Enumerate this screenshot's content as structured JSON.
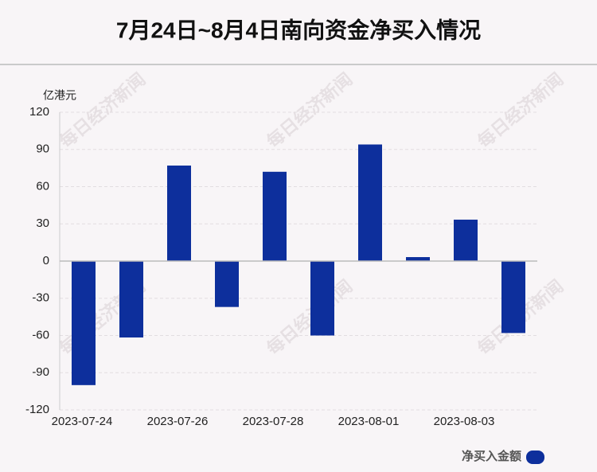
{
  "chart_data": {
    "type": "bar",
    "title": "7月24日~8月4日南向资金净买入情况",
    "y_label": "亿港元",
    "watermark": "每日经济新闻",
    "categories": [
      "2023-07-24",
      null,
      "2023-07-26",
      null,
      "2023-07-28",
      null,
      "2023-08-01",
      null,
      "2023-08-03",
      null
    ],
    "series": [
      {
        "name": "净买入金额",
        "color": "#0d2f9c",
        "values": [
          -100,
          -61.6,
          77,
          -37,
          72,
          -60,
          94,
          3.2,
          33.4,
          -58
        ]
      }
    ],
    "ylim": [
      -120,
      120
    ],
    "yticks": [
      -120,
      -90,
      -60,
      -30,
      0,
      30,
      60,
      90,
      120
    ],
    "grid": true
  }
}
